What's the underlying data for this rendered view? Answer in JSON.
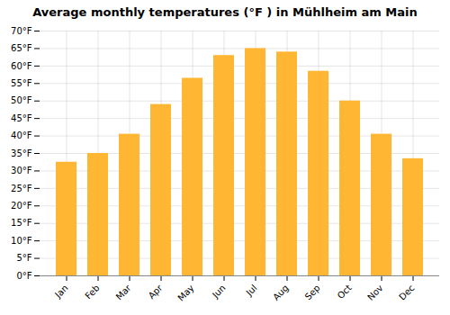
{
  "chart_data": {
    "type": "bar",
    "title": "Average monthly temperatures (°F ) in Mühlheim am Main",
    "categories": [
      "Jan",
      "Feb",
      "Mar",
      "Apr",
      "May",
      "Jun",
      "Jul",
      "Aug",
      "Sep",
      "Oct",
      "Nov",
      "Dec"
    ],
    "values": [
      32.5,
      35.0,
      40.5,
      49.0,
      56.5,
      63.0,
      65.0,
      64.0,
      58.5,
      50.0,
      40.5,
      33.5
    ],
    "color": "#FFB733",
    "ylim": [
      0,
      70
    ],
    "yticks": [
      {
        "value": 0,
        "label": "0°F"
      },
      {
        "value": 5,
        "label": "5°F"
      },
      {
        "value": 10,
        "label": "10°F"
      },
      {
        "value": 15,
        "label": "15°F"
      },
      {
        "value": 20,
        "label": "20°F"
      },
      {
        "value": 25,
        "label": "25°F"
      },
      {
        "value": 30,
        "label": "30°F"
      },
      {
        "value": 35,
        "label": "35°F"
      },
      {
        "value": 40,
        "label": "40°F"
      },
      {
        "value": 45,
        "label": "45°F"
      },
      {
        "value": 50,
        "label": "50°F"
      },
      {
        "value": 55,
        "label": "55°F"
      },
      {
        "value": 60,
        "label": "60°F"
      },
      {
        "value": 65,
        "label": "65°F"
      },
      {
        "value": 70,
        "label": "70°F"
      }
    ],
    "grid": true
  }
}
